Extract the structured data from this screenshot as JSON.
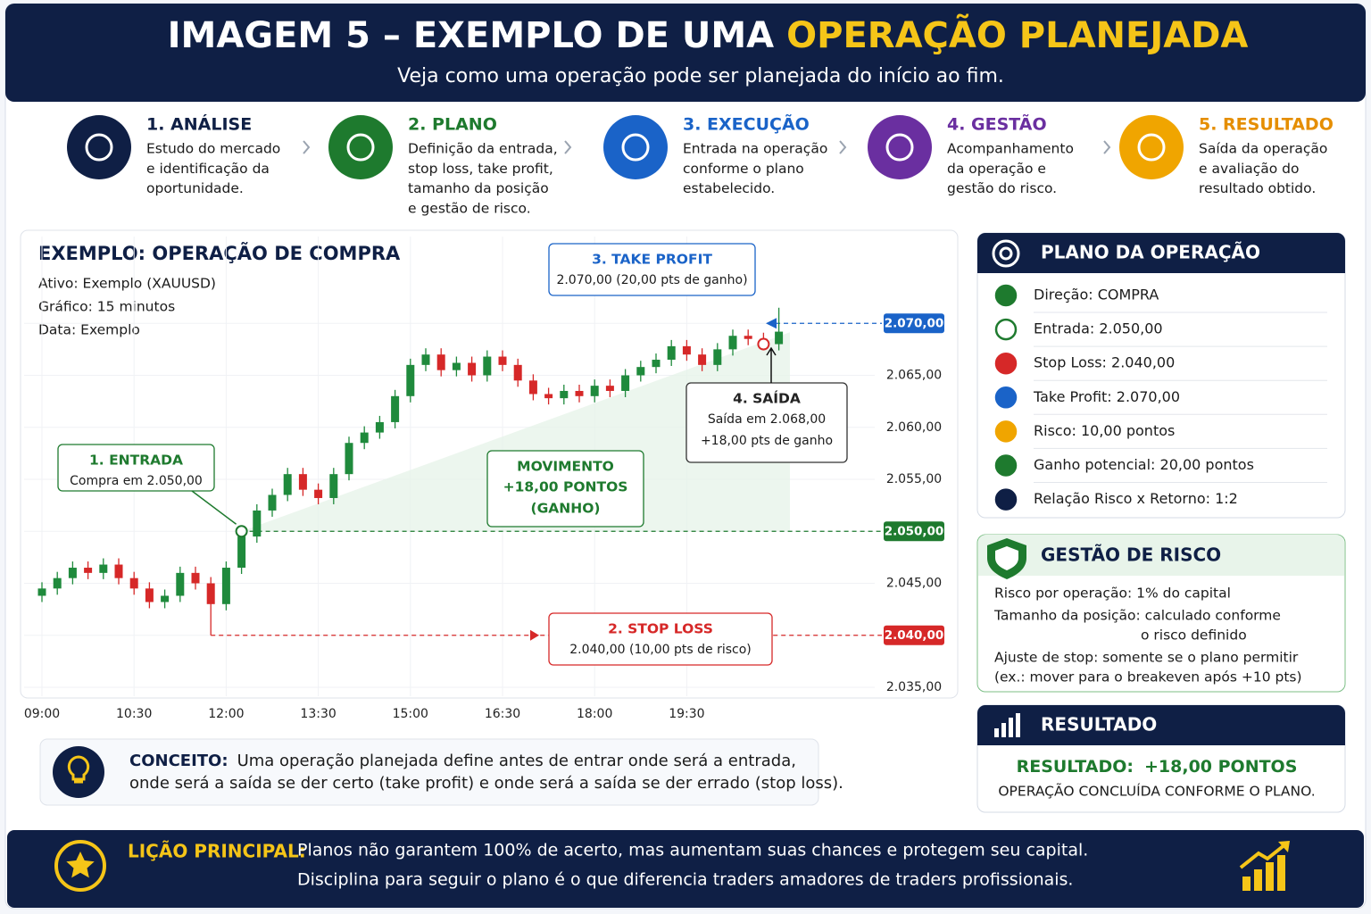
{
  "header": {
    "title": "IMAGEM 5 – EXEMPLO DE UMA",
    "title_highlight": "OPERAÇÃO PLANEJADA",
    "subtitle": "Veja como uma operação pode ser planejada do início ao fim."
  },
  "steps": [
    {
      "title": "1. ANÁLISE",
      "lines": [
        "Estudo do mercado",
        "e identificação da",
        "oportunidade."
      ]
    },
    {
      "title": "2. PLANO",
      "lines": [
        "Definição da entrada,",
        "stop loss, take profit,",
        "tamanho da posição",
        "e gestão de risco."
      ]
    },
    {
      "title": "3. EXECUÇÃO",
      "lines": [
        "Entrada na operação",
        "conforme o plano",
        "estabelecido."
      ]
    },
    {
      "title": "4. GESTÃO",
      "lines": [
        "Acompanhamento",
        "da operação e",
        "gestão do risco."
      ]
    },
    {
      "title": "5. RESULTADO",
      "lines": [
        "Saída da operação",
        "e avaliação do",
        "resultado obtido."
      ]
    }
  ],
  "chart_data": {
    "type": "candlestick",
    "title": "EXEMPLO: OPERAÇÃO DE COMPRA",
    "info": [
      "Ativo: Exemplo (XAUUSD)",
      "Gráfico: 15 minutos",
      "Data: Exemplo"
    ],
    "categories": [
      "09:00",
      null,
      null,
      null,
      null,
      null,
      "10:30",
      null,
      null,
      null,
      null,
      null,
      "12:00",
      null,
      null,
      null,
      null,
      null,
      "13:30",
      null,
      null,
      null,
      null,
      null,
      "15:00",
      null,
      null,
      null,
      null,
      null,
      "16:30",
      null,
      null,
      null,
      null,
      null,
      "18:00",
      null,
      null,
      null,
      null,
      null,
      "19:30",
      null,
      null,
      null,
      null,
      null,
      null
    ],
    "open": [
      2043.8,
      2044.5,
      2045.5,
      2046.5,
      2046.0,
      2046.8,
      2045.5,
      2044.5,
      2043.2,
      2043.8,
      2046.0,
      2045.0,
      2043.0,
      2046.5,
      2049.5,
      2052.0,
      2053.5,
      2055.5,
      2054.0,
      2053.2,
      2055.5,
      2058.5,
      2059.5,
      2060.5,
      2063.0,
      2066.0,
      2067.0,
      2065.5,
      2066.2,
      2065.0,
      2066.8,
      2066.0,
      2064.5,
      2063.2,
      2062.8,
      2063.5,
      2063.0,
      2064.0,
      2063.5,
      2065.0,
      2065.8,
      2066.5,
      2067.8,
      2067.0,
      2066.0,
      2067.5,
      2068.8,
      2068.5,
      2068.0
    ],
    "high": [
      2045.1,
      2046.1,
      2047.1,
      2047.1,
      2047.4,
      2047.4,
      2046.1,
      2045.1,
      2044.4,
      2046.6,
      2046.6,
      2045.6,
      2047.1,
      2050.1,
      2052.6,
      2054.1,
      2056.1,
      2056.1,
      2054.6,
      2056.1,
      2059.1,
      2060.1,
      2061.1,
      2063.6,
      2066.6,
      2067.6,
      2067.6,
      2066.8,
      2066.8,
      2067.4,
      2067.4,
      2066.6,
      2065.1,
      2063.8,
      2064.1,
      2064.1,
      2064.6,
      2064.6,
      2065.6,
      2066.4,
      2067.1,
      2068.4,
      2068.4,
      2067.6,
      2068.1,
      2069.4,
      2069.4,
      2069.1,
      2071.5
    ],
    "low": [
      2043.2,
      2043.9,
      2044.9,
      2045.4,
      2045.4,
      2044.9,
      2043.9,
      2042.6,
      2042.6,
      2043.2,
      2044.4,
      2040.0,
      2042.4,
      2045.9,
      2048.9,
      2051.4,
      2052.9,
      2053.4,
      2052.6,
      2052.6,
      2054.9,
      2057.9,
      2058.9,
      2059.9,
      2062.4,
      2065.4,
      2064.9,
      2064.9,
      2064.4,
      2064.4,
      2065.4,
      2063.9,
      2062.6,
      2062.2,
      2062.2,
      2062.4,
      2062.4,
      2062.9,
      2062.9,
      2064.4,
      2065.2,
      2065.9,
      2066.4,
      2065.4,
      2065.4,
      2066.9,
      2067.9,
      2067.4,
      2067.4
    ],
    "close": [
      2044.5,
      2045.5,
      2046.5,
      2046.0,
      2046.8,
      2045.5,
      2044.5,
      2043.2,
      2043.8,
      2046.0,
      2045.0,
      2043.0,
      2046.5,
      2049.5,
      2052.0,
      2053.5,
      2055.5,
      2054.0,
      2053.2,
      2055.5,
      2058.5,
      2059.5,
      2060.5,
      2063.0,
      2066.0,
      2067.0,
      2065.5,
      2066.2,
      2065.0,
      2066.8,
      2066.0,
      2064.5,
      2063.2,
      2062.8,
      2063.5,
      2063.0,
      2064.0,
      2063.5,
      2065.0,
      2065.8,
      2066.5,
      2067.8,
      2067.0,
      2066.0,
      2067.5,
      2068.8,
      2068.5,
      2068.0,
      2069.2
    ],
    "up_color": "#1f8a3c",
    "down_color": "#d62828",
    "ylim": [
      2035,
      2075
    ],
    "yticks": [
      {
        "value": 2035,
        "label": "2.035,00"
      },
      {
        "value": 2040,
        "label": "2.040,00"
      },
      {
        "value": 2045,
        "label": "2.045,00"
      },
      {
        "value": 2050,
        "label": "2.050,00"
      },
      {
        "value": 2055,
        "label": "2.055,00"
      },
      {
        "value": 2060,
        "label": "2.060,00"
      },
      {
        "value": 2065,
        "label": "2.065,00"
      },
      {
        "value": 2070,
        "label": "2.070,00"
      }
    ],
    "grid": true,
    "levels": [
      {
        "value": 2050,
        "label": "2.050,00",
        "color": "#1e7a2e"
      },
      {
        "value": 2040,
        "label": "2.040,00",
        "color": "#d62828"
      },
      {
        "value": 2070,
        "label": "2.070,00",
        "color": "#1a63c8"
      }
    ],
    "annotations": [
      {
        "title": "1. ENTRADA",
        "lines": [
          "Compra em 2.050,00"
        ],
        "color": "#1e7a2e"
      },
      {
        "title": "2. STOP LOSS",
        "lines": [
          "2.040,00 (10,00 pts de risco)"
        ],
        "color": "#d62828"
      },
      {
        "title": "3. TAKE PROFIT",
        "lines": [
          "2.070,00 (20,00 pts de ganho)"
        ],
        "color": "#1a63c8"
      },
      {
        "title": "4. SAÍDA",
        "lines": [
          "Saída em 2.068,00",
          "+18,00 pts de ganho"
        ],
        "color": "#222222"
      },
      {
        "title": "MOVIMENTO",
        "lines": [
          "+18,00 PONTOS",
          "(GANHO)"
        ],
        "color": "#1e7a2e"
      }
    ]
  },
  "plan": {
    "title": "PLANO DA OPERAÇÃO",
    "items": [
      "Direção: COMPRA",
      "Entrada: 2.050,00",
      "Stop Loss: 2.040,00",
      "Take Profit: 2.070,00",
      "Risco: 10,00 pontos",
      "Ganho potencial: 20,00 pontos",
      "Relação Risco x Retorno: 1:2"
    ]
  },
  "risk": {
    "title": "GESTÃO DE RISCO",
    "lines": [
      "Risco por operação: 1% do capital",
      "Tamanho da posição: calculado conforme",
      "o risco definido",
      "Ajuste de stop: somente se o plano permitir",
      "(ex.: mover para o breakeven após +10 pts)"
    ]
  },
  "result": {
    "title": "RESULTADO",
    "label": "RESULTADO:",
    "value": "+18,00 PONTOS",
    "note": "OPERAÇÃO CONCLUÍDA CONFORME O PLANO."
  },
  "concept": {
    "label": "CONCEITO:",
    "lines": [
      "Uma operação planejada define antes de entrar onde será a entrada,",
      "onde será a saída se der certo (take profit) e onde será a saída se der errado (stop loss)."
    ]
  },
  "lesson": {
    "label": "LIÇÃO PRINCIPAL:",
    "lines": [
      "Planos não garantem 100% de acerto, mas aumentam suas chances e protegem seu capital.",
      "Disciplina para seguir o plano é o que diferencia traders amadores de traders profissionais."
    ]
  }
}
